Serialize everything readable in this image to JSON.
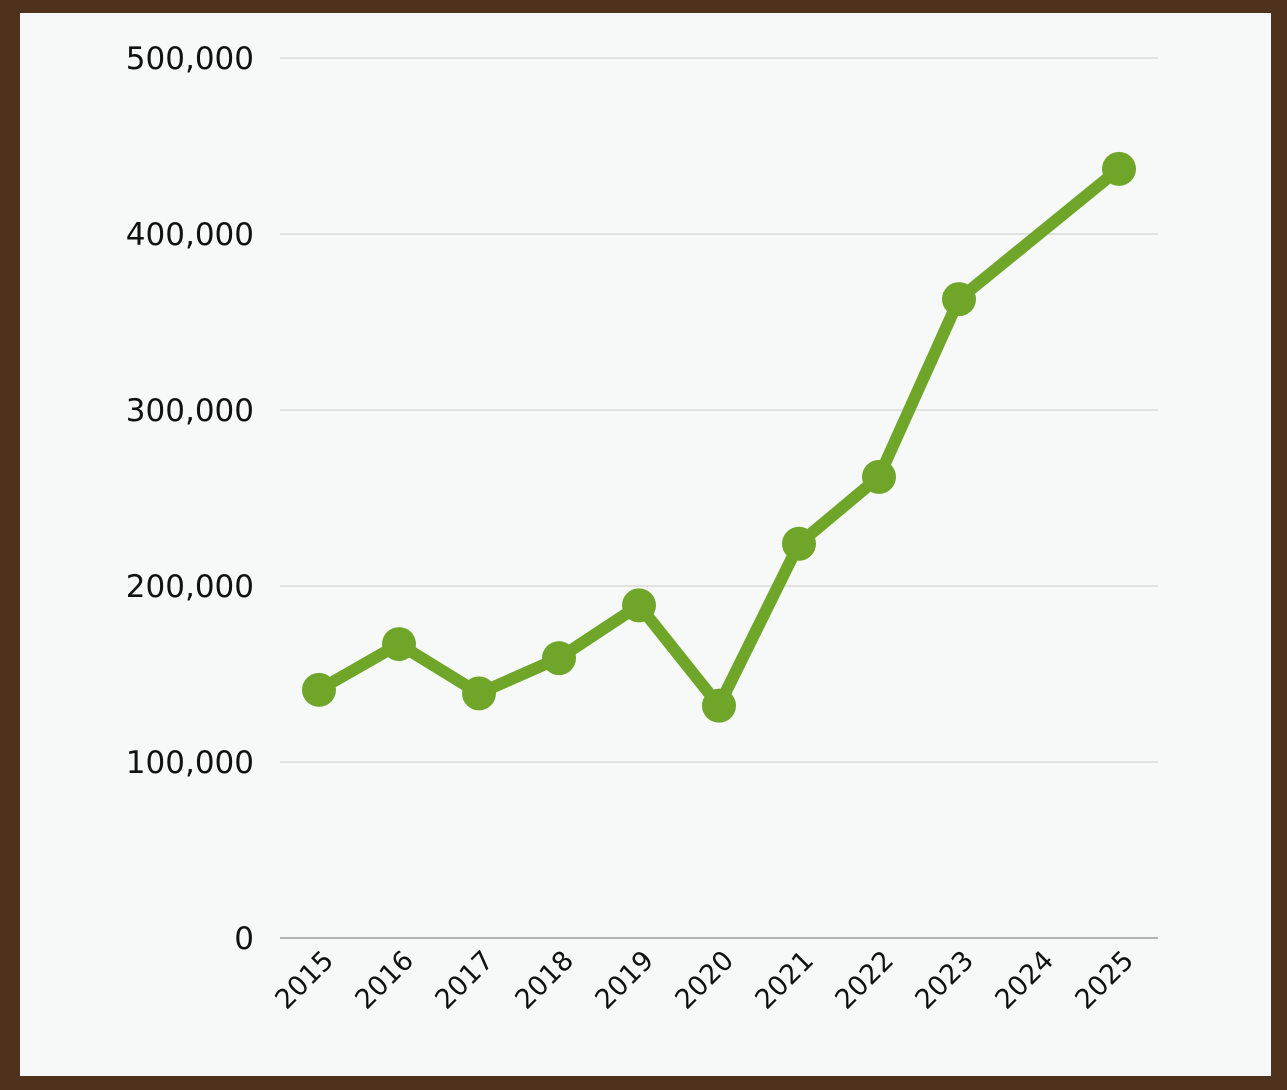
{
  "chart_data": {
    "type": "line",
    "title": "",
    "xlabel": "",
    "ylabel": "",
    "x": [
      "2015",
      "2016",
      "2017",
      "2018",
      "2019",
      "2020",
      "2021",
      "2022",
      "2023",
      "2024",
      "2025"
    ],
    "series": [
      {
        "values": [
          141000,
          167000,
          139000,
          159000,
          189000,
          132000,
          224000,
          262000,
          363000,
          null,
          437000
        ]
      }
    ],
    "y_ticks": [
      "0",
      "100,000",
      "200,000",
      "300,000",
      "400,000",
      "500,000"
    ],
    "ylim": [
      0,
      500000
    ],
    "grid": true,
    "legend": "none",
    "colors": {
      "line": "#6fa62a",
      "frame": "#4e321b",
      "background": "#f7f9f8",
      "grid": "#c8ccc9"
    }
  }
}
